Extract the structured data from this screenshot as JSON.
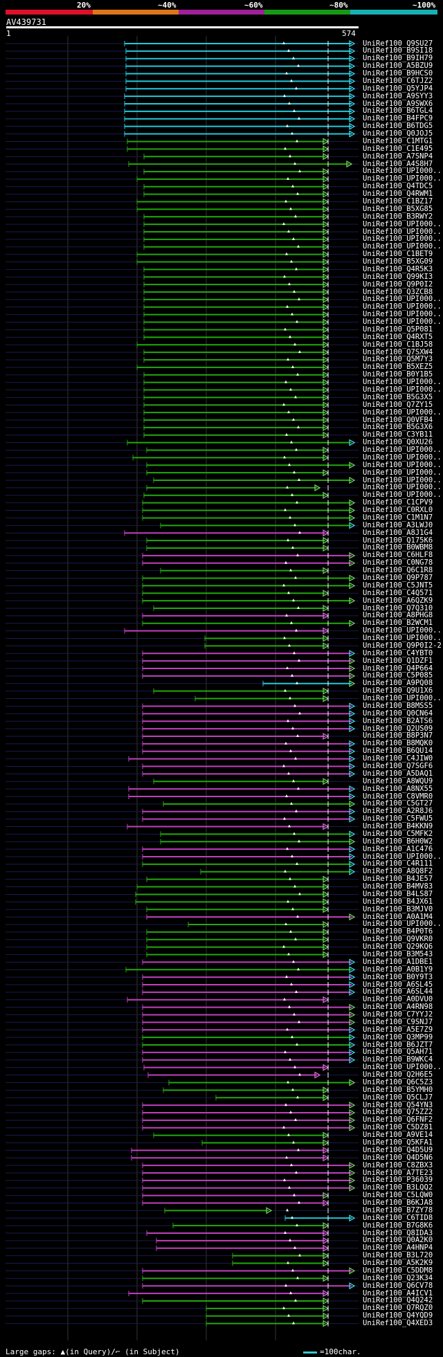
{
  "legend": {
    "labels": [
      "20%",
      "~40%",
      "~60%",
      "~80%",
      "~100%"
    ],
    "colors": [
      "#e0102a",
      "#e0761a",
      "#a0209a",
      "#169a16",
      "#18b0b4"
    ]
  },
  "query": {
    "name": "AV439731",
    "start": "1",
    "end": "574"
  },
  "footer": {
    "left": "Large gaps: ▲(in Query)/⌐ (in Subject)",
    "right": "=100char."
  },
  "hits": [
    {
      "id": "UniRef100_Q9SU27",
      "c": "cyan",
      "s": 180,
      "e": 512,
      "a": "r"
    },
    {
      "id": "UniRef100_B9SI18",
      "c": "cyan",
      "s": 182,
      "e": 512,
      "a": "r"
    },
    {
      "id": "UniRef100_B9IH79",
      "c": "cyan",
      "s": 182,
      "e": 512,
      "a": "r"
    },
    {
      "id": "UniRef100_A5BZU9",
      "c": "cyan",
      "s": 182,
      "e": 512,
      "a": "r"
    },
    {
      "id": "UniRef100_B9HCS0",
      "c": "cyan",
      "s": 182,
      "e": 512,
      "a": "r"
    },
    {
      "id": "UniRef100_C6TJZ2",
      "c": "cyan",
      "s": 182,
      "e": 512,
      "a": "r"
    },
    {
      "id": "UniRef100_Q5YJP4",
      "c": "cyan",
      "s": 182,
      "e": 512,
      "a": "r"
    },
    {
      "id": "UniRef100_A9SYY3",
      "c": "cyan",
      "s": 180,
      "e": 512,
      "a": "r"
    },
    {
      "id": "UniRef100_A9SWX6",
      "c": "cyan",
      "s": 180,
      "e": 512,
      "a": "r"
    },
    {
      "id": "UniRef100_B6TGL4",
      "c": "cyan",
      "s": 180,
      "e": 512,
      "a": "r"
    },
    {
      "id": "UniRef100_B4FPC9",
      "c": "cyan",
      "s": 180,
      "e": 512,
      "a": "r"
    },
    {
      "id": "UniRef100_B6TDG5",
      "c": "cyan",
      "s": 180,
      "e": 512,
      "a": "r"
    },
    {
      "id": "UniRef100_Q0JOJ5",
      "c": "cyan",
      "s": 180,
      "e": 512,
      "a": "r"
    },
    {
      "id": "UniRef100_C1MTG1",
      "c": "green",
      "s": 184,
      "e": 474,
      "a": "g"
    },
    {
      "id": "UniRef100_C1E495",
      "c": "green",
      "s": 184,
      "e": 474,
      "a": "g"
    },
    {
      "id": "UniRef100_A7SNP4",
      "c": "green",
      "s": 208,
      "e": 474,
      "a": "g"
    },
    {
      "id": "UniRef100_A4S8H7",
      "c": "green",
      "s": 186,
      "e": 508,
      "a": "g"
    },
    {
      "id": "UniRef100_UPI000..",
      "c": "green",
      "s": 208,
      "e": 474,
      "a": "g"
    },
    {
      "id": "UniRef100_UPI000..",
      "c": "green",
      "s": 198,
      "e": 474,
      "a": "g"
    },
    {
      "id": "UniRef100_Q4TDC5",
      "c": "green",
      "s": 208,
      "e": 474,
      "a": "g"
    },
    {
      "id": "UniRef100_Q4RWM1",
      "c": "green",
      "s": 208,
      "e": 474,
      "a": "g"
    },
    {
      "id": "UniRef100_C1BZ17",
      "c": "green",
      "s": 198,
      "e": 474,
      "a": "g"
    },
    {
      "id": "UniRef100_B5XG85",
      "c": "green",
      "s": 198,
      "e": 474,
      "a": "g"
    },
    {
      "id": "UniRef100_B3RWY2",
      "c": "green",
      "s": 208,
      "e": 474,
      "a": "g"
    },
    {
      "id": "UniRef100_UPI000..",
      "c": "green",
      "s": 208,
      "e": 474,
      "a": "g"
    },
    {
      "id": "UniRef100_UPI000..",
      "c": "green",
      "s": 208,
      "e": 474,
      "a": "g"
    },
    {
      "id": "UniRef100_UPI000..",
      "c": "green",
      "s": 208,
      "e": 474,
      "a": "g"
    },
    {
      "id": "UniRef100_UPI000..",
      "c": "green",
      "s": 208,
      "e": 474,
      "a": "g"
    },
    {
      "id": "UniRef100_C1BET9",
      "c": "green",
      "s": 198,
      "e": 474,
      "a": "g"
    },
    {
      "id": "UniRef100_B5XG09",
      "c": "green",
      "s": 198,
      "e": 474,
      "a": "g"
    },
    {
      "id": "UniRef100_Q4R5K3",
      "c": "green",
      "s": 208,
      "e": 474,
      "a": "g"
    },
    {
      "id": "UniRef100_Q99KI3",
      "c": "green",
      "s": 208,
      "e": 474,
      "a": "g"
    },
    {
      "id": "UniRef100_Q9P0I2",
      "c": "green",
      "s": 208,
      "e": 474,
      "a": "g"
    },
    {
      "id": "UniRef100_Q3ZCB8",
      "c": "green",
      "s": 208,
      "e": 474,
      "a": "g"
    },
    {
      "id": "UniRef100_UPI000..",
      "c": "green",
      "s": 208,
      "e": 474,
      "a": "g"
    },
    {
      "id": "UniRef100_UPI000..",
      "c": "green",
      "s": 208,
      "e": 474,
      "a": "g"
    },
    {
      "id": "UniRef100_UPI000..",
      "c": "green",
      "s": 208,
      "e": 474,
      "a": "g"
    },
    {
      "id": "UniRef100_UPI000..",
      "c": "green",
      "s": 208,
      "e": 474,
      "a": "g"
    },
    {
      "id": "UniRef100_Q5P081",
      "c": "green",
      "s": 208,
      "e": 474,
      "a": "g"
    },
    {
      "id": "UniRef100_Q4RXT5",
      "c": "green",
      "s": 208,
      "e": 474,
      "a": "g"
    },
    {
      "id": "UniRef100_C1BJ58",
      "c": "green",
      "s": 198,
      "e": 474,
      "a": "g"
    },
    {
      "id": "UniRef100_Q7SXW4",
      "c": "green",
      "s": 208,
      "e": 474,
      "a": "g"
    },
    {
      "id": "UniRef100_Q5M7Y3",
      "c": "green",
      "s": 208,
      "e": 474,
      "a": "g"
    },
    {
      "id": "UniRef100_B5XEZ5",
      "c": "green",
      "s": 198,
      "e": 474,
      "a": "g"
    },
    {
      "id": "UniRef100_B0Y1B5",
      "c": "green",
      "s": 208,
      "e": 474,
      "a": "g"
    },
    {
      "id": "UniRef100_UPI000..",
      "c": "green",
      "s": 208,
      "e": 474,
      "a": "g"
    },
    {
      "id": "UniRef100_UPI000..",
      "c": "green",
      "s": 208,
      "e": 474,
      "a": "g"
    },
    {
      "id": "UniRef100_B5G3X5",
      "c": "green",
      "s": 208,
      "e": 474,
      "a": "g"
    },
    {
      "id": "UniRef100_Q7ZY15",
      "c": "green",
      "s": 208,
      "e": 474,
      "a": "g"
    },
    {
      "id": "UniRef100_UPI000..",
      "c": "green",
      "s": 208,
      "e": 474,
      "a": "g"
    },
    {
      "id": "UniRef100_Q0VFB4",
      "c": "green",
      "s": 208,
      "e": 474,
      "a": "g"
    },
    {
      "id": "UniRef100_B5G3X6",
      "c": "green",
      "s": 208,
      "e": 474,
      "a": "g"
    },
    {
      "id": "UniRef100_C3YB11",
      "c": "green",
      "s": 208,
      "e": 474,
      "a": "g"
    },
    {
      "id": "UniRef100_Q0XU26",
      "c": "green",
      "s": 184,
      "e": 512,
      "a": "c"
    },
    {
      "id": "UniRef100_UPI000..",
      "c": "green",
      "s": 212,
      "e": 474,
      "a": "g"
    },
    {
      "id": "UniRef100_UPI000..",
      "c": "green",
      "s": 192,
      "e": 474,
      "a": "g"
    },
    {
      "id": "UniRef100_UPI000..",
      "c": "green",
      "s": 212,
      "e": 512,
      "a": "g"
    },
    {
      "id": "UniRef100_UPI000..",
      "c": "green",
      "s": 212,
      "e": 474,
      "a": "g"
    },
    {
      "id": "UniRef100_UPI000..",
      "c": "green",
      "s": 222,
      "e": 512,
      "a": "g"
    },
    {
      "id": "UniRef100_UPI000..",
      "c": "green",
      "s": 212,
      "e": 462,
      "a": "g"
    },
    {
      "id": "UniRef100_UPI000..",
      "c": "green",
      "s": 208,
      "e": 474,
      "a": "g"
    },
    {
      "id": "UniRef100_C1CPV9",
      "c": "green",
      "s": 206,
      "e": 512,
      "a": "g"
    },
    {
      "id": "UniRef100_C0RXL0",
      "c": "green",
      "s": 206,
      "e": 512,
      "a": "g"
    },
    {
      "id": "UniRef100_C1M1N7",
      "c": "green",
      "s": 206,
      "e": 512,
      "a": "g"
    },
    {
      "id": "UniRef100_A3LWJ0",
      "c": "green",
      "s": 232,
      "e": 512,
      "a": "c"
    },
    {
      "id": "UniRef100_A8J1G4",
      "c": "purple",
      "s": 180,
      "e": 474,
      "a": "p"
    },
    {
      "id": "UniRef100_Q175K6",
      "c": "green",
      "s": 212,
      "e": 474,
      "a": "g"
    },
    {
      "id": "UniRef100_B0WBM8",
      "c": "green",
      "s": 212,
      "e": 474,
      "a": "g"
    },
    {
      "id": "UniRef100_C6HLF8",
      "c": "purple",
      "s": 206,
      "e": 512,
      "a": "g"
    },
    {
      "id": "UniRef100_C0NG78",
      "c": "purple",
      "s": 206,
      "e": 512,
      "a": "g"
    },
    {
      "id": "UniRef100_Q6C1R8",
      "c": "green",
      "s": 232,
      "e": 474,
      "a": "g"
    },
    {
      "id": "UniRef100_Q9P787",
      "c": "green",
      "s": 206,
      "e": 512,
      "a": "g"
    },
    {
      "id": "UniRef100_C5JNT5",
      "c": "green",
      "s": 206,
      "e": 512,
      "a": "g"
    },
    {
      "id": "UniRef100_C4Q571",
      "c": "green",
      "s": 206,
      "e": 474,
      "a": "g"
    },
    {
      "id": "UniRef100_A6QZK9",
      "c": "green",
      "s": 206,
      "e": 512,
      "a": "g"
    },
    {
      "id": "UniRef100_Q7Q310",
      "c": "green",
      "s": 222,
      "e": 474,
      "a": "g"
    },
    {
      "id": "UniRef100_A8PHG8",
      "c": "purple",
      "s": 206,
      "e": 474,
      "a": "p"
    },
    {
      "id": "UniRef100_B2WCM1",
      "c": "green",
      "s": 206,
      "e": 512,
      "a": "g"
    },
    {
      "id": "UniRef100_UPI000..",
      "c": "purple",
      "s": 180,
      "e": 474,
      "a": "p"
    },
    {
      "id": "UniRef100_UPI000..",
      "c": "green",
      "s": 296,
      "e": 474,
      "a": "g"
    },
    {
      "id": "UniRef100_Q9P0I2-2",
      "c": "green",
      "s": 296,
      "e": 474,
      "a": "g"
    },
    {
      "id": "UniRef100_C4YBT0",
      "c": "purple",
      "s": 206,
      "e": 512,
      "a": "c"
    },
    {
      "id": "UniRef100_Q1DZF1",
      "c": "purple",
      "s": 206,
      "e": 512,
      "a": "g"
    },
    {
      "id": "UniRef100_Q4P664",
      "c": "purple",
      "s": 206,
      "e": 512,
      "a": "g"
    },
    {
      "id": "UniRef100_C5P085",
      "c": "purple",
      "s": 206,
      "e": 512,
      "a": "g"
    },
    {
      "id": "UniRef100_A9PQ08",
      "c": "cyan",
      "s": 380,
      "e": 512,
      "a": "g"
    },
    {
      "id": "UniRef100_Q9U1X6",
      "c": "green",
      "s": 222,
      "e": 474,
      "a": "g"
    },
    {
      "id": "UniRef100_UPI000..",
      "c": "green",
      "s": 282,
      "e": 474,
      "a": "g"
    },
    {
      "id": "UniRef100_B8MSS5",
      "c": "purple",
      "s": 206,
      "e": 512,
      "a": "c"
    },
    {
      "id": "UniRef100_Q0CN64",
      "c": "purple",
      "s": 206,
      "e": 512,
      "a": "c"
    },
    {
      "id": "UniRef100_B2ATS6",
      "c": "purple",
      "s": 206,
      "e": 512,
      "a": "c"
    },
    {
      "id": "UniRef100_Q2US09",
      "c": "purple",
      "s": 206,
      "e": 512,
      "a": "c"
    },
    {
      "id": "UniRef100_B8P3N7",
      "c": "purple",
      "s": 206,
      "e": 474,
      "a": "p"
    },
    {
      "id": "UniRef100_B8MQK0",
      "c": "purple",
      "s": 206,
      "e": 512,
      "a": "c"
    },
    {
      "id": "UniRef100_B6QU14",
      "c": "purple",
      "s": 206,
      "e": 512,
      "a": "c"
    },
    {
      "id": "UniRef100_C4JIW0",
      "c": "purple",
      "s": 186,
      "e": 512,
      "a": "c"
    },
    {
      "id": "UniRef100_Q7SGF6",
      "c": "purple",
      "s": 206,
      "e": 512,
      "a": "c"
    },
    {
      "id": "UniRef100_A5DAQ1",
      "c": "purple",
      "s": 206,
      "e": 512,
      "a": "c"
    },
    {
      "id": "UniRef100_A8WQU9",
      "c": "green",
      "s": 222,
      "e": 474,
      "a": "g"
    },
    {
      "id": "UniRef100_A8NX55",
      "c": "purple",
      "s": 186,
      "e": 512,
      "a": "c"
    },
    {
      "id": "UniRef100_C8VMR0",
      "c": "purple",
      "s": 186,
      "e": 512,
      "a": "c"
    },
    {
      "id": "UniRef100_C5GT27",
      "c": "green",
      "s": 236,
      "e": 512,
      "a": "g"
    },
    {
      "id": "UniRef100_A2R8J6",
      "c": "purple",
      "s": 206,
      "e": 512,
      "a": "c"
    },
    {
      "id": "UniRef100_C5FWU5",
      "c": "purple",
      "s": 206,
      "e": 512,
      "a": "c"
    },
    {
      "id": "UniRef100_B4KKN9",
      "c": "purple",
      "s": 184,
      "e": 474,
      "a": "p"
    },
    {
      "id": "UniRef100_C5MFK2",
      "c": "green",
      "s": 232,
      "e": 512,
      "a": "c"
    },
    {
      "id": "UniRef100_B6H0W2",
      "c": "green",
      "s": 232,
      "e": 512,
      "a": "g"
    },
    {
      "id": "UniRef100_A1C476",
      "c": "purple",
      "s": 206,
      "e": 512,
      "a": "c"
    },
    {
      "id": "UniRef100_UPI000..",
      "c": "purple",
      "s": 206,
      "e": 512,
      "a": "c"
    },
    {
      "id": "UniRef100_C4R111",
      "c": "green",
      "s": 206,
      "e": 512,
      "a": "c"
    },
    {
      "id": "UniRef100_A8Q8F2",
      "c": "green",
      "s": 290,
      "e": 512,
      "a": "c"
    },
    {
      "id": "UniRef100_B4JE57",
      "c": "green",
      "s": 212,
      "e": 474,
      "a": "g"
    },
    {
      "id": "UniRef100_B4MV83",
      "c": "green",
      "s": 198,
      "e": 474,
      "a": "g"
    },
    {
      "id": "UniRef100_B4LS87",
      "c": "green",
      "s": 196,
      "e": 474,
      "a": "g"
    },
    {
      "id": "UniRef100_B4JX61",
      "c": "green",
      "s": 196,
      "e": 474,
      "a": "g"
    },
    {
      "id": "UniRef100_B3MJV0",
      "c": "green",
      "s": 212,
      "e": 474,
      "a": "g"
    },
    {
      "id": "UniRef100_A0A1M4",
      "c": "purple",
      "s": 212,
      "e": 512,
      "a": "g"
    },
    {
      "id": "UniRef100_UPI000..",
      "c": "green",
      "s": 272,
      "e": 474,
      "a": "g"
    },
    {
      "id": "UniRef100_B4P0T6",
      "c": "green",
      "s": 212,
      "e": 474,
      "a": "g"
    },
    {
      "id": "UniRef100_Q9VKR0",
      "c": "green",
      "s": 212,
      "e": 474,
      "a": "g"
    },
    {
      "id": "UniRef100_Q29KQ6",
      "c": "green",
      "s": 212,
      "e": 474,
      "a": "g"
    },
    {
      "id": "UniRef100_B3M543",
      "c": "green",
      "s": 212,
      "e": 474,
      "a": "g"
    },
    {
      "id": "UniRef100_A1DBE1",
      "c": "purple",
      "s": 206,
      "e": 512,
      "a": "c"
    },
    {
      "id": "UniRef100_A0B1Y9",
      "c": "green",
      "s": 182,
      "e": 512,
      "a": "c"
    },
    {
      "id": "UniRef100_B0Y9T3",
      "c": "purple",
      "s": 206,
      "e": 512,
      "a": "c"
    },
    {
      "id": "UniRef100_A6SL45",
      "c": "purple",
      "s": 206,
      "e": 512,
      "a": "c"
    },
    {
      "id": "UniRef100_A6SL44",
      "c": "purple",
      "s": 206,
      "e": 512,
      "a": "c"
    },
    {
      "id": "UniRef100_A0DVU0",
      "c": "purple",
      "s": 184,
      "e": 474,
      "a": "p"
    },
    {
      "id": "UniRef100_A4RN98",
      "c": "purple",
      "s": 206,
      "e": 512,
      "a": "g"
    },
    {
      "id": "UniRef100_C7YYJ2",
      "c": "purple",
      "s": 206,
      "e": 512,
      "a": "g"
    },
    {
      "id": "UniRef100_C9SNJ7",
      "c": "purple",
      "s": 206,
      "e": 512,
      "a": "g"
    },
    {
      "id": "UniRef100_A5E7Z9",
      "c": "purple",
      "s": 206,
      "e": 512,
      "a": "c"
    },
    {
      "id": "UniRef100_Q3MP99",
      "c": "green",
      "s": 206,
      "e": 512,
      "a": "c"
    },
    {
      "id": "UniRef100_B6JZT7",
      "c": "green",
      "s": 206,
      "e": 512,
      "a": "c"
    },
    {
      "id": "UniRef100_Q5AH71",
      "c": "purple",
      "s": 206,
      "e": 512,
      "a": "c"
    },
    {
      "id": "UniRef100_B9WKC4",
      "c": "purple",
      "s": 206,
      "e": 512,
      "a": "c"
    },
    {
      "id": "UniRef100_UPI000..",
      "c": "purple",
      "s": 208,
      "e": 474,
      "a": "p"
    },
    {
      "id": "UniRef100_Q2H6E5",
      "c": "purple",
      "s": 214,
      "e": 462,
      "a": "p"
    },
    {
      "id": "UniRef100_Q6C5Z3",
      "c": "green",
      "s": 244,
      "e": 512,
      "a": "g"
    },
    {
      "id": "UniRef100_B5YMH0",
      "c": "green",
      "s": 236,
      "e": 474,
      "a": "g"
    },
    {
      "id": "UniRef100_Q5CLJ7",
      "c": "green",
      "s": 312,
      "e": 474,
      "a": "g"
    },
    {
      "id": "UniRef100_Q54YN3",
      "c": "purple",
      "s": 206,
      "e": 512,
      "a": "g"
    },
    {
      "id": "UniRef100_Q75ZZ2",
      "c": "purple",
      "s": 206,
      "e": 512,
      "a": "g"
    },
    {
      "id": "UniRef100_Q6FNF2",
      "c": "purple",
      "s": 206,
      "e": 512,
      "a": "g"
    },
    {
      "id": "UniRef100_C5DZ81",
      "c": "purple",
      "s": 206,
      "e": 512,
      "a": "g"
    },
    {
      "id": "UniRef100_A9VE14",
      "c": "green",
      "s": 222,
      "e": 474,
      "a": "g"
    },
    {
      "id": "UniRef100_Q5KFA1",
      "c": "green",
      "s": 292,
      "e": 474,
      "a": "g"
    },
    {
      "id": "UniRef100_Q4D5U9",
      "c": "purple",
      "s": 190,
      "e": 474,
      "a": "p"
    },
    {
      "id": "UniRef100_Q4D5N6",
      "c": "purple",
      "s": 190,
      "e": 474,
      "a": "p"
    },
    {
      "id": "UniRef100_C8ZBX3",
      "c": "purple",
      "s": 206,
      "e": 512,
      "a": "g"
    },
    {
      "id": "UniRef100_A7TE23",
      "c": "purple",
      "s": 206,
      "e": 512,
      "a": "g"
    },
    {
      "id": "UniRef100_P36039",
      "c": "purple",
      "s": 206,
      "e": 512,
      "a": "g"
    },
    {
      "id": "UniRef100_B3LQQ2",
      "c": "purple",
      "s": 206,
      "e": 512,
      "a": "g"
    },
    {
      "id": "UniRef100_C5LQW0",
      "c": "purple",
      "s": 206,
      "e": 474,
      "a": "g"
    },
    {
      "id": "UniRef100_B6KJA8",
      "c": "purple",
      "s": 206,
      "e": 474,
      "a": "p"
    },
    {
      "id": "UniRef100_B7ZY78",
      "c": "green",
      "s": 238,
      "e": 392,
      "a": "g"
    },
    {
      "id": "UniRef100_C6TID8",
      "c": "cyan",
      "s": 412,
      "e": 512,
      "a": "c"
    },
    {
      "id": "UniRef100_B7G8K6",
      "c": "green",
      "s": 250,
      "e": 474,
      "a": "g"
    },
    {
      "id": "UniRef100_Q8IDA3",
      "c": "purple",
      "s": 212,
      "e": 474,
      "a": "p"
    },
    {
      "id": "UniRef100_Q0A2K0",
      "c": "purple",
      "s": 226,
      "e": 474,
      "a": "p"
    },
    {
      "id": "UniRef100_A4HNP4",
      "c": "purple",
      "s": 226,
      "e": 474,
      "a": "p"
    },
    {
      "id": "UniRef100_B3L720",
      "c": "green",
      "s": 336,
      "e": 474,
      "a": "g"
    },
    {
      "id": "UniRef100_A5K2K9",
      "c": "green",
      "s": 336,
      "e": 474,
      "a": "g"
    },
    {
      "id": "UniRef100_C5DDM8",
      "c": "purple",
      "s": 206,
      "e": 512,
      "a": "g"
    },
    {
      "id": "UniRef100_Q23K34",
      "c": "green",
      "s": 206,
      "e": 474,
      "a": "g"
    },
    {
      "id": "UniRef100_Q6CV78",
      "c": "purple",
      "s": 206,
      "e": 512,
      "a": "c"
    },
    {
      "id": "UniRef100_A4ICV1",
      "c": "purple",
      "s": 186,
      "e": 474,
      "a": "p"
    },
    {
      "id": "UniRef100_Q4Q242",
      "c": "green",
      "s": 206,
      "e": 474,
      "a": "g"
    },
    {
      "id": "UniRef100_Q7RQZ0",
      "c": "green",
      "s": 298,
      "e": 474,
      "a": "g"
    },
    {
      "id": "UniRef100_Q4YQD9",
      "c": "green",
      "s": 298,
      "e": 474,
      "a": "g"
    },
    {
      "id": "UniRef100_Q4XED3",
      "c": "green",
      "s": 298,
      "e": 474,
      "a": "g"
    }
  ]
}
